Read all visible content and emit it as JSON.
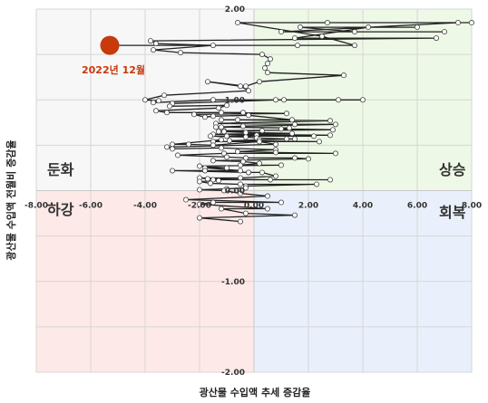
{
  "chart_data": {
    "type": "scatter",
    "style": "connected-scatter (quadrant chart)",
    "xlabel": "광산물 수입액  추세 증감율",
    "ylabel": "광산물  수입액  전월비  증감율",
    "xlim": [
      -8,
      8
    ],
    "ylim": [
      -2,
      2
    ],
    "x_ticks": [
      "-8.00",
      "-6.00",
      "-4.00",
      "-2.00",
      "0.00",
      "2.00",
      "4.00",
      "6.00",
      "8.00"
    ],
    "y_ticks": [
      "2.00",
      "1.00",
      "0.00",
      "-1.00",
      "-2.00"
    ],
    "grid": true,
    "quadrants": [
      {
        "id": "upper-left",
        "label": "둔화",
        "color": "#f7f7f7"
      },
      {
        "id": "upper-right",
        "label": "상승",
        "color": "#eef8e6"
      },
      {
        "id": "lower-left",
        "label": "하강",
        "color": "#fde9e8"
      },
      {
        "id": "lower-right",
        "label": "회복",
        "color": "#eaf0fb"
      }
    ],
    "line_color": "#222222",
    "marker_color": "#ffffff",
    "highlight": {
      "label": "2022년 12월",
      "x": -5.3,
      "y": 1.6,
      "color": "#c8390c"
    },
    "points": [
      [
        -5.3,
        1.6
      ],
      [
        1.6,
        1.6
      ],
      [
        3.7,
        1.6
      ],
      [
        2.5,
        1.7
      ],
      [
        -0.6,
        1.85
      ],
      [
        8.0,
        1.85
      ],
      [
        2.7,
        1.85
      ],
      [
        7.5,
        1.85
      ],
      [
        1.0,
        1.75
      ],
      [
        7.0,
        1.75
      ],
      [
        3.7,
        1.75
      ],
      [
        1.7,
        1.8
      ],
      [
        6.0,
        1.8
      ],
      [
        4.2,
        1.8
      ],
      [
        1.5,
        1.68
      ],
      [
        6.7,
        1.68
      ],
      [
        -3.8,
        1.65
      ],
      [
        -3.6,
        1.62
      ],
      [
        -1.5,
        1.6
      ],
      [
        -3.7,
        1.55
      ],
      [
        -2.7,
        1.52
      ],
      [
        0.3,
        1.5
      ],
      [
        0.6,
        1.45
      ],
      [
        0.5,
        1.4
      ],
      [
        0.4,
        1.35
      ],
      [
        0.5,
        1.3
      ],
      [
        3.3,
        1.27
      ],
      [
        0.2,
        1.2
      ],
      [
        -0.3,
        1.15
      ],
      [
        -1.7,
        1.2
      ],
      [
        -0.5,
        1.15
      ],
      [
        -0.2,
        1.1
      ],
      [
        -3.3,
        1.05
      ],
      [
        -4.0,
        1.0
      ],
      [
        -3.5,
        0.99
      ],
      [
        -3.7,
        0.97
      ],
      [
        -1.5,
        1.0
      ],
      [
        4.0,
        1.0
      ],
      [
        1.1,
        1.0
      ],
      [
        3.1,
        1.0
      ],
      [
        0.8,
        1.0
      ],
      [
        -3.0,
        0.96
      ],
      [
        -3.1,
        0.93
      ],
      [
        -1.0,
        0.94
      ],
      [
        -1.3,
        0.91
      ],
      [
        -3.6,
        0.88
      ],
      [
        -3.2,
        0.86
      ],
      [
        -0.4,
        0.86
      ],
      [
        -1.2,
        0.86
      ],
      [
        1.2,
        0.85
      ],
      [
        -2.2,
        0.84
      ],
      [
        -1.8,
        0.81
      ],
      [
        -1.5,
        0.82
      ],
      [
        -0.2,
        0.83
      ],
      [
        1.4,
        0.78
      ],
      [
        -1.2,
        0.78
      ],
      [
        -0.6,
        0.78
      ],
      [
        2.8,
        0.77
      ],
      [
        -1.4,
        0.74
      ],
      [
        1.5,
        0.73
      ],
      [
        3.0,
        0.73
      ],
      [
        -0.4,
        0.71
      ],
      [
        -1.4,
        0.7
      ],
      [
        -1.2,
        0.7
      ],
      [
        1.3,
        0.69
      ],
      [
        1.0,
        0.68
      ],
      [
        2.9,
        0.67
      ],
      [
        -1.1,
        0.66
      ],
      [
        -1.3,
        0.65
      ],
      [
        0.3,
        0.66
      ],
      [
        -1.1,
        0.65
      ],
      [
        -0.3,
        0.64
      ],
      [
        1.4,
        0.63
      ],
      [
        -1.5,
        0.62
      ],
      [
        2.8,
        0.61
      ],
      [
        0.1,
        0.61
      ],
      [
        -1.0,
        0.6
      ],
      [
        2.2,
        0.6
      ],
      [
        -1.6,
        0.6
      ],
      [
        -0.3,
        0.59
      ],
      [
        0.1,
        0.58
      ],
      [
        1.2,
        0.57
      ],
      [
        1.5,
        0.57
      ],
      [
        0.2,
        0.56
      ],
      [
        -0.9,
        0.55
      ],
      [
        2.4,
        0.54
      ],
      [
        -1.5,
        0.54
      ],
      [
        -1.2,
        0.56
      ],
      [
        -3.0,
        0.51
      ],
      [
        -2.4,
        0.51
      ],
      [
        -1.5,
        0.5
      ],
      [
        0.2,
        0.54
      ],
      [
        0.8,
        0.51
      ],
      [
        -3.2,
        0.48
      ],
      [
        -3.0,
        0.46
      ],
      [
        -1.2,
        0.47
      ],
      [
        0.8,
        0.45
      ],
      [
        -0.6,
        0.43
      ],
      [
        0.8,
        0.42
      ],
      [
        3.0,
        0.41
      ],
      [
        -1.1,
        0.41
      ],
      [
        -2.8,
        0.39
      ],
      [
        -1.0,
        0.37
      ],
      [
        -0.3,
        0.36
      ],
      [
        1.5,
        0.36
      ],
      [
        2.0,
        0.35
      ],
      [
        -1.5,
        0.33
      ],
      [
        -0.4,
        0.32
      ],
      [
        0.2,
        0.3
      ],
      [
        -0.5,
        0.28
      ],
      [
        1.0,
        0.28
      ],
      [
        -2.0,
        0.27
      ],
      [
        -1.0,
        0.25
      ],
      [
        -1.8,
        0.25
      ],
      [
        -0.5,
        0.22
      ],
      [
        -3.0,
        0.22
      ],
      [
        -0.2,
        0.2
      ],
      [
        -1.8,
        0.22
      ],
      [
        -0.2,
        0.2
      ],
      [
        0.3,
        0.2
      ],
      [
        0.8,
        0.16
      ],
      [
        -0.5,
        0.14
      ],
      [
        -2.0,
        0.14
      ],
      [
        -1.7,
        0.13
      ],
      [
        0.6,
        0.12
      ],
      [
        2.8,
        0.12
      ],
      [
        -1.5,
        0.12
      ],
      [
        -1.3,
        0.11
      ],
      [
        -2.0,
        0.1
      ],
      [
        -1.6,
        0.08
      ],
      [
        -0.5,
        0.07
      ],
      [
        2.3,
        0.07
      ],
      [
        -0.3,
        0.05
      ],
      [
        -0.3,
        0.03
      ],
      [
        -1.0,
        0.02
      ],
      [
        -2.0,
        0.01
      ],
      [
        -1.1,
        0.0
      ],
      [
        -0.5,
        -0.03
      ],
      [
        0.5,
        -0.06
      ],
      [
        -2.5,
        -0.1
      ],
      [
        1.0,
        -0.13
      ],
      [
        -1.5,
        -0.13
      ],
      [
        -2.0,
        -0.15
      ],
      [
        0.5,
        -0.2
      ],
      [
        -1.2,
        -0.2
      ],
      [
        -0.3,
        -0.25
      ],
      [
        1.5,
        -0.27
      ],
      [
        -2.0,
        -0.3
      ],
      [
        -0.5,
        -0.34
      ]
    ]
  }
}
